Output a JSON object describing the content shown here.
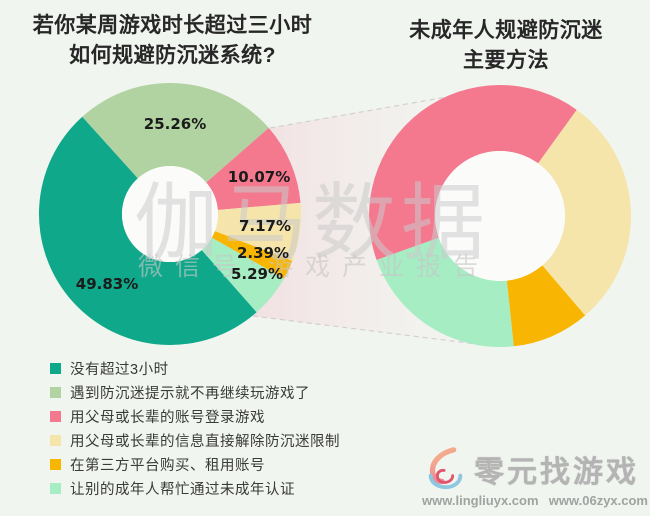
{
  "chart_data": [
    {
      "type": "pie",
      "donut": true,
      "title": "若你某周游戏时长超过三小时如何规避防沉迷系统?",
      "title_lines": [
        "若你某周游戏时长超过三小时",
        "如何规避防沉迷系统?"
      ],
      "labels": [
        "没有超过3小时",
        "遇到防沉迷提示就不再继续玩游戏了",
        "用父母或长辈的账号登录游戏",
        "用父母或长辈的信息直接解除防沉迷限制",
        "在第三方平台购买、租用账号",
        "让别的成年人帮忙通过未成年认证"
      ],
      "values": [
        49.83,
        25.26,
        10.07,
        7.17,
        2.39,
        5.29
      ],
      "value_labels": [
        "49.83%",
        "25.26%",
        "10.07%",
        "7.17%",
        "2.39%",
        "5.29%"
      ],
      "colors": [
        "#0fa88a",
        "#b1d3a1",
        "#f4798f",
        "#f6e5aa",
        "#f8b501",
        "#a6edc3"
      ],
      "show_value_labels": true,
      "legend_position": "bottom-left"
    },
    {
      "type": "pie",
      "donut": true,
      "title": "未成年人规避防沉迷主要方法",
      "title_lines": [
        "未成年人规避防沉迷",
        "主要方法"
      ],
      "labels": [
        "用父母或长辈的账号登录游戏",
        "用父母或长辈的信息直接解除防沉迷限制",
        "在第三方平台购买、租用账号",
        "让别的成年人帮忙通过未成年认证"
      ],
      "values": [
        10.07,
        7.17,
        2.39,
        5.29
      ],
      "normalized_shares": [
        40.41,
        28.77,
        9.59,
        21.23
      ],
      "colors": [
        "#f4798f",
        "#f6e5aa",
        "#f8b501",
        "#a6edc3"
      ],
      "show_value_labels": false
    }
  ],
  "legend": {
    "items": [
      {
        "label": "没有超过3小时",
        "color": "#0fa88a"
      },
      {
        "label": "遇到防沉迷提示就不再继续玩游戏了",
        "color": "#b1d3a1"
      },
      {
        "label": "用父母或长辈的账号登录游戏",
        "color": "#f4798f"
      },
      {
        "label": "用父母或长辈的信息直接解除防沉迷限制",
        "color": "#f6e5aa"
      },
      {
        "label": "在第三方平台购买、租用账号",
        "color": "#f8b501"
      },
      {
        "label": "让别的成年人帮忙通过未成年认证",
        "color": "#a6edc3"
      }
    ]
  },
  "watermark": {
    "line1": "伽马数据",
    "line2": "微信号:游戏产业报告"
  },
  "logo": {
    "brand": "零元找游戏",
    "url_left": "www.lingliuyx.com",
    "url_right": "www.06zyx.com"
  },
  "colors": {
    "background": "#f1f5ef",
    "title_text": "#272727",
    "legend_text": "#3a3a3a",
    "watermark": "#cacaca",
    "hole": "#fbfcfa",
    "funnel_pink": "#f4c4d0",
    "dash_line": "#d0d0d0"
  }
}
